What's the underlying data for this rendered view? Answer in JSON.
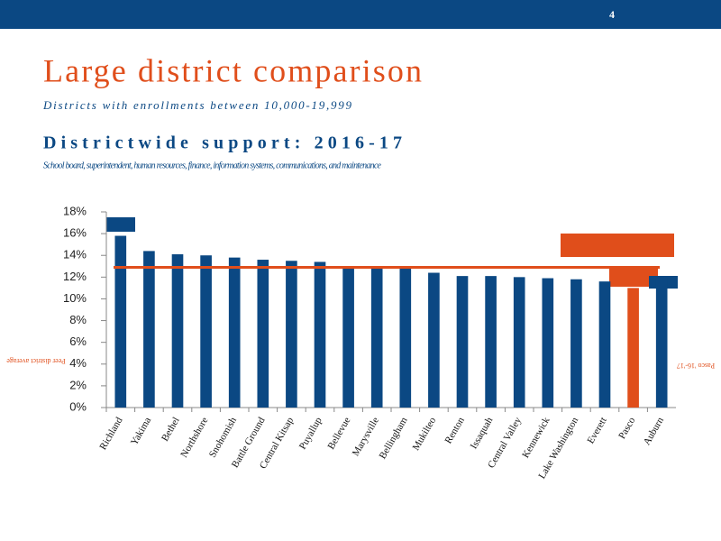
{
  "page_number": "4",
  "header": {
    "title": "Large district comparison",
    "subtitle": "Districts with enrollments between 10,000-19,999",
    "section": "Districtwide support: 2016-17",
    "description": "School board, superintendent, human resources, finance, information systems, communications, and maintenance"
  },
  "chart_data": {
    "type": "bar",
    "categories": [
      "Richland",
      "Yakima",
      "Bethel",
      "Northshore",
      "Snohomish",
      "Battle Ground",
      "Central Kitsap",
      "Puyallup",
      "Bellevue",
      "Marysville",
      "Bellingham",
      "Mukilteo",
      "Renton",
      "Issaquah",
      "Central Valley",
      "Kennewick",
      "Lake Washington",
      "Everett",
      "Pasco",
      "Auburn"
    ],
    "values": [
      15.8,
      14.4,
      14.1,
      14.0,
      13.8,
      13.6,
      13.5,
      13.4,
      13.0,
      12.8,
      12.8,
      12.4,
      12.1,
      12.1,
      12.0,
      11.9,
      11.8,
      11.6,
      11.0,
      11.9
    ],
    "color": "#0b4883",
    "highlight_color": "#e04e1b",
    "highlight_index": 18,
    "average": 12.9,
    "average_color": "#e04e1b",
    "ylim": [
      0,
      18
    ],
    "yticks": [
      {
        "value": 0,
        "label": "0%"
      },
      {
        "value": 2,
        "label": "2%"
      },
      {
        "value": 4,
        "label": "4%"
      },
      {
        "value": 6,
        "label": "6%"
      },
      {
        "value": 8,
        "label": "8%"
      },
      {
        "value": 10,
        "label": "10%"
      },
      {
        "value": 12,
        "label": "12%"
      },
      {
        "value": 14,
        "label": "14%"
      },
      {
        "value": 16,
        "label": "16%"
      },
      {
        "value": 18,
        "label": "18%"
      }
    ],
    "average_label": "Peer district average",
    "highlight_label": "Pasco '16-'17"
  }
}
